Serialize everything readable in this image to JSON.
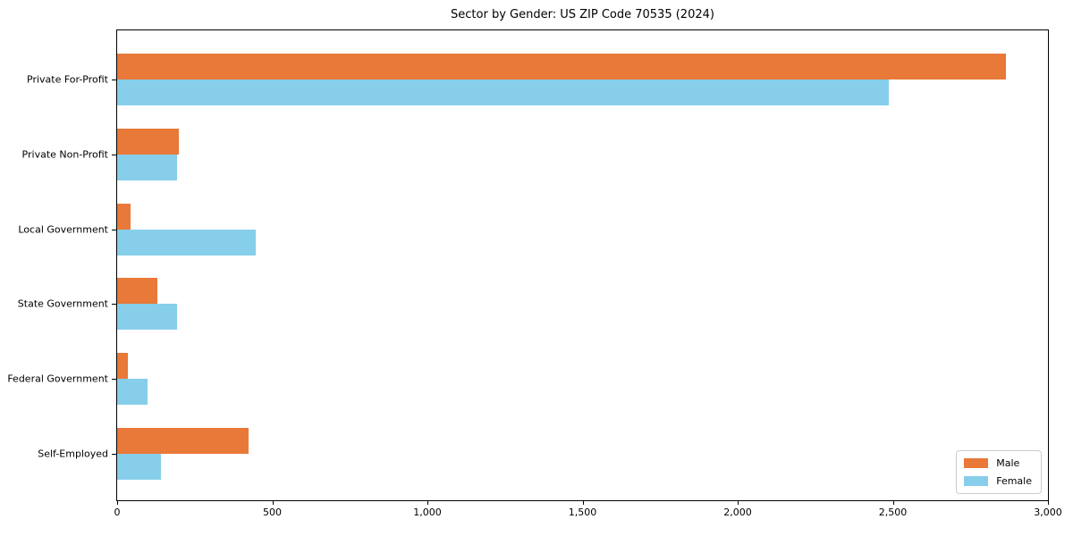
{
  "chart_data": {
    "type": "bar",
    "orientation": "horizontal",
    "title": "Sector by Gender: US ZIP Code 70535 (2024)",
    "categories": [
      "Private For-Profit",
      "Private Non-Profit",
      "Local Government",
      "State Government",
      "Federal Government",
      "Self-Employed"
    ],
    "series": [
      {
        "name": "Male",
        "color": "#e87938",
        "values": [
          2865,
          200,
          43,
          131,
          35,
          423
        ]
      },
      {
        "name": "Female",
        "color": "#87ceeb",
        "values": [
          2487,
          193,
          448,
          194,
          99,
          141
        ]
      }
    ],
    "xlabel": "",
    "ylabel": "",
    "xlim": [
      0,
      3000
    ],
    "xticks": [
      0,
      500,
      1000,
      1500,
      2000,
      2500,
      3000
    ],
    "xtick_labels": [
      "0",
      "500",
      "1,000",
      "1,500",
      "2,000",
      "2,500",
      "3,000"
    ],
    "grid": false,
    "legend_position": "lower right",
    "axis_color": "#000000",
    "background_color": "#ffffff"
  }
}
